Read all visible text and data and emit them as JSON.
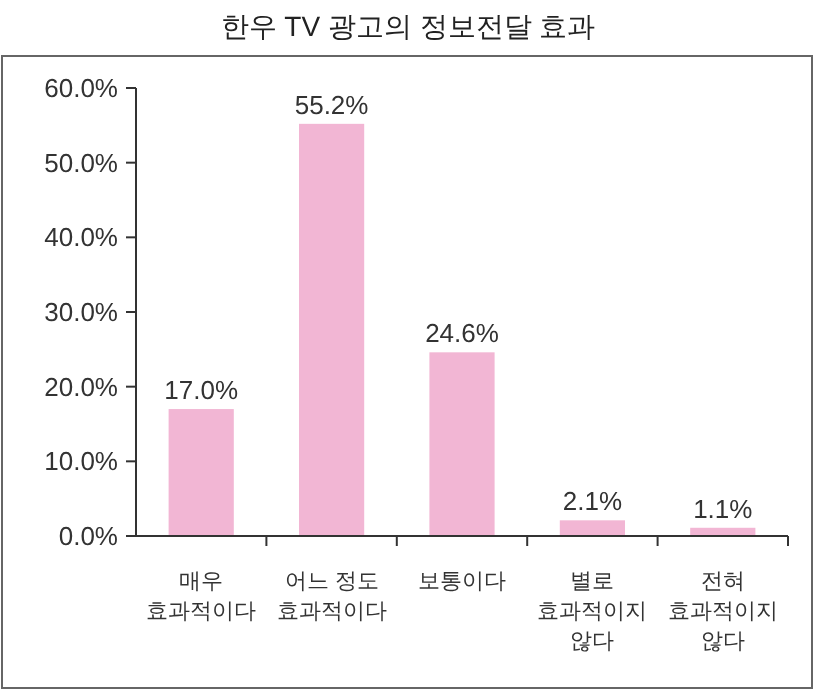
{
  "chart_data": {
    "type": "bar",
    "title": "한우 TV 광고의 정보전달 효과",
    "categories": [
      "매우 효과적이다",
      "어느 정도 효과적이다",
      "보통이다",
      "별로 효과적이지 않다",
      "전혀 효과적이지 않다"
    ],
    "values": [
      17.0,
      55.2,
      24.6,
      2.1,
      1.1
    ],
    "value_labels": [
      "17.0%",
      "55.2%",
      "24.6%",
      "2.1%",
      "1.1%"
    ],
    "color": "#f2b6d4",
    "ylim": [
      0,
      60
    ],
    "yticks": [
      {
        "value": 0,
        "label": "0.0%"
      },
      {
        "value": 10,
        "label": "10.0%"
      },
      {
        "value": 20,
        "label": "20.0%"
      },
      {
        "value": 30,
        "label": "30.0%"
      },
      {
        "value": 40,
        "label": "40.0%"
      },
      {
        "value": 50,
        "label": "50.0%"
      },
      {
        "value": 60,
        "label": "60.0%"
      }
    ],
    "grid": false
  }
}
